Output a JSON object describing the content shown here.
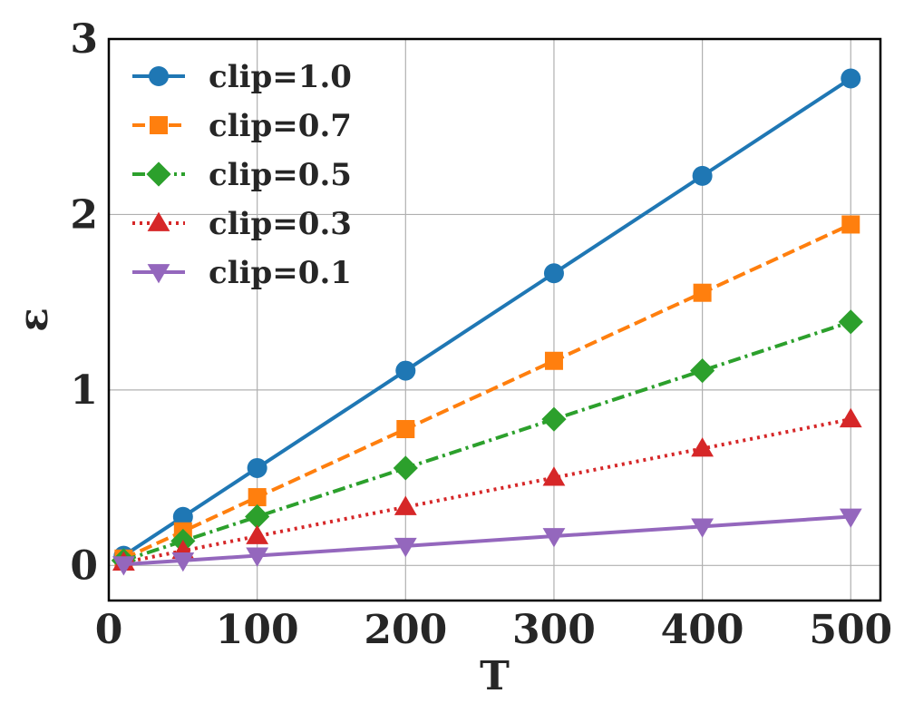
{
  "chart_data": {
    "type": "line",
    "title": "",
    "xlabel": "T",
    "ylabel": "ε",
    "xlim": [
      0,
      520
    ],
    "ylim": [
      -0.2,
      3.0
    ],
    "xticks": [
      0,
      100,
      200,
      300,
      400,
      500
    ],
    "yticks": [
      0,
      1,
      2,
      3
    ],
    "grid": true,
    "legend_position": "top-left",
    "x": [
      10,
      50,
      100,
      200,
      300,
      400,
      500
    ],
    "series": [
      {
        "name": "clip=1.0",
        "label": "clip=1.0",
        "color": "#1f77b4",
        "marker": "circle",
        "linestyle": "solid",
        "values": [
          0.055,
          0.277,
          0.555,
          1.11,
          1.665,
          2.22,
          2.775
        ]
      },
      {
        "name": "clip=0.7",
        "label": "clip=0.7",
        "color": "#ff7f0e",
        "marker": "square",
        "linestyle": "dashed",
        "values": [
          0.039,
          0.194,
          0.389,
          0.777,
          1.166,
          1.554,
          1.943
        ]
      },
      {
        "name": "clip=0.5",
        "label": "clip=0.5",
        "color": "#2ca02c",
        "marker": "diamond",
        "linestyle": "dashdot",
        "values": [
          0.028,
          0.139,
          0.278,
          0.555,
          0.833,
          1.11,
          1.388
        ]
      },
      {
        "name": "clip=0.3",
        "label": "clip=0.3",
        "color": "#d62728",
        "marker": "triangle-up",
        "linestyle": "dotted",
        "values": [
          0.017,
          0.083,
          0.167,
          0.333,
          0.5,
          0.666,
          0.833
        ]
      },
      {
        "name": "clip=0.1",
        "label": "clip=0.1",
        "color": "#9467bd",
        "marker": "triangle-down",
        "linestyle": "solid",
        "values": [
          0.006,
          0.028,
          0.056,
          0.111,
          0.167,
          0.222,
          0.278
        ]
      }
    ]
  }
}
